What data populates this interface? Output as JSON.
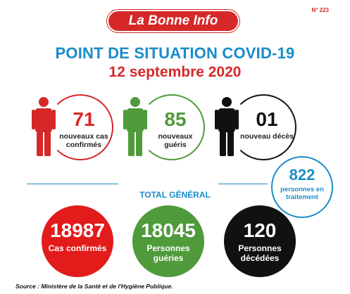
{
  "issue_number": "N° 223",
  "brand": "La Bonne Info",
  "title": "POINT DE SITUATION COVID-19",
  "date": "12 septembre 2020",
  "daily": {
    "new_cases": {
      "value": "71",
      "label": "nouveaux cas confirmés"
    },
    "new_recovered": {
      "value": "85",
      "label": "nouveaux guéris"
    },
    "new_deaths": {
      "value": "01",
      "label": "nouveau décès"
    }
  },
  "in_treatment": {
    "value": "822",
    "label": "personnes en traitement"
  },
  "total_label": "TOTAL GÉNÉRAL",
  "totals": {
    "confirmed": {
      "value": "18987",
      "label": "Cas confirmés"
    },
    "recovered": {
      "value": "18045",
      "label": "Personnes guéries"
    },
    "deaths": {
      "value": "120",
      "label": "Personnes décédées"
    }
  },
  "source": "Source : Ministère de la Santé et de l'Hygiène Publique.",
  "colors": {
    "red": "#d62828",
    "green": "#4f9a3a",
    "black": "#111111",
    "blue": "#1a8cc8"
  },
  "icons": [
    "person-icon-red",
    "person-icon-green",
    "person-icon-black"
  ]
}
